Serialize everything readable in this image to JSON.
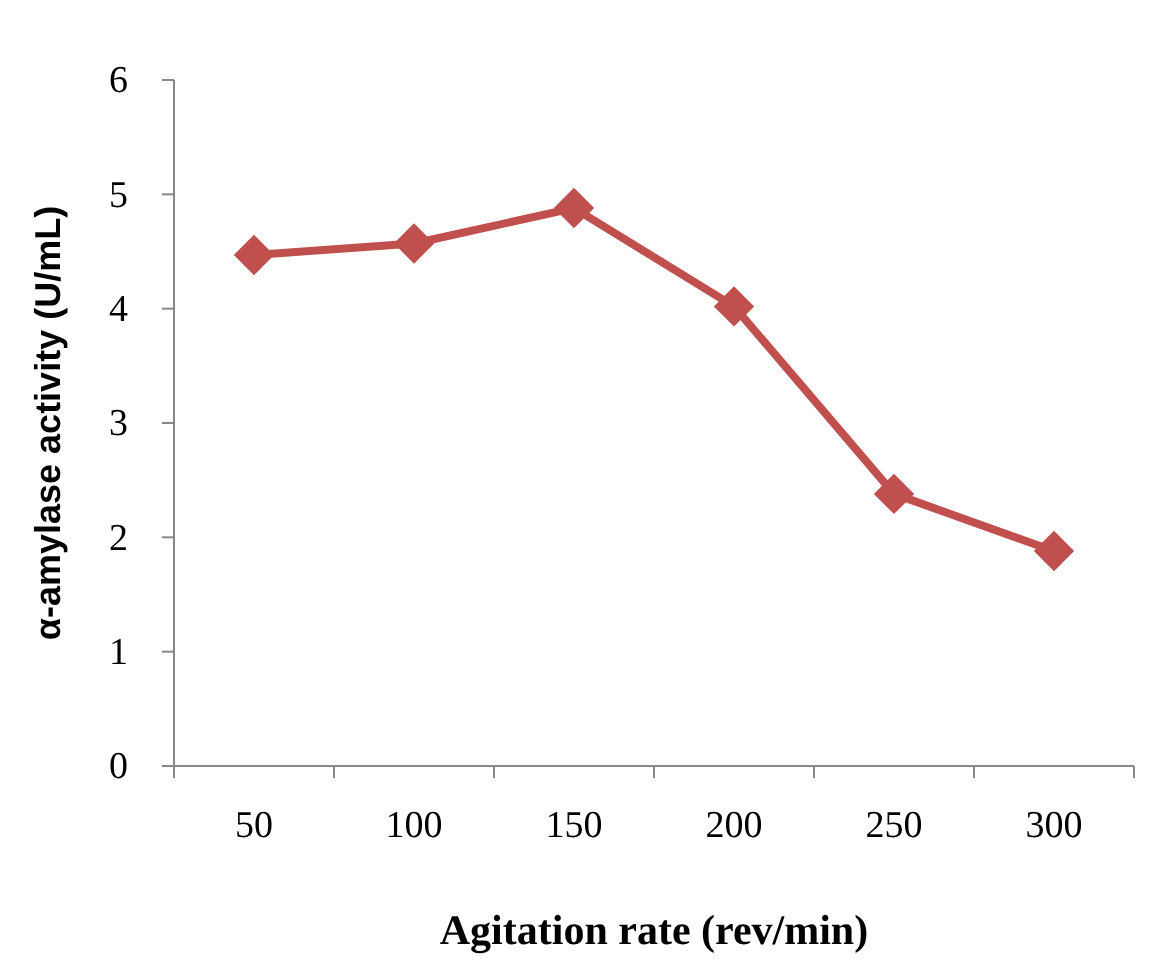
{
  "chart_data": {
    "type": "line",
    "xlabel": "Agitation rate (rev/min)",
    "ylabel": "α-amylase activity (U/mL)",
    "categories": [
      "50",
      "100",
      "150",
      "200",
      "250",
      "300"
    ],
    "series": [
      {
        "color": "#c0504d",
        "values": [
          4.47,
          4.57,
          4.88,
          4.02,
          2.38,
          1.88
        ]
      }
    ],
    "ylim": [
      0,
      6
    ],
    "yticks": [
      0,
      1,
      2,
      3,
      4,
      5,
      6
    ],
    "marker": "diamond",
    "line_style": "solid",
    "grid": false
  }
}
